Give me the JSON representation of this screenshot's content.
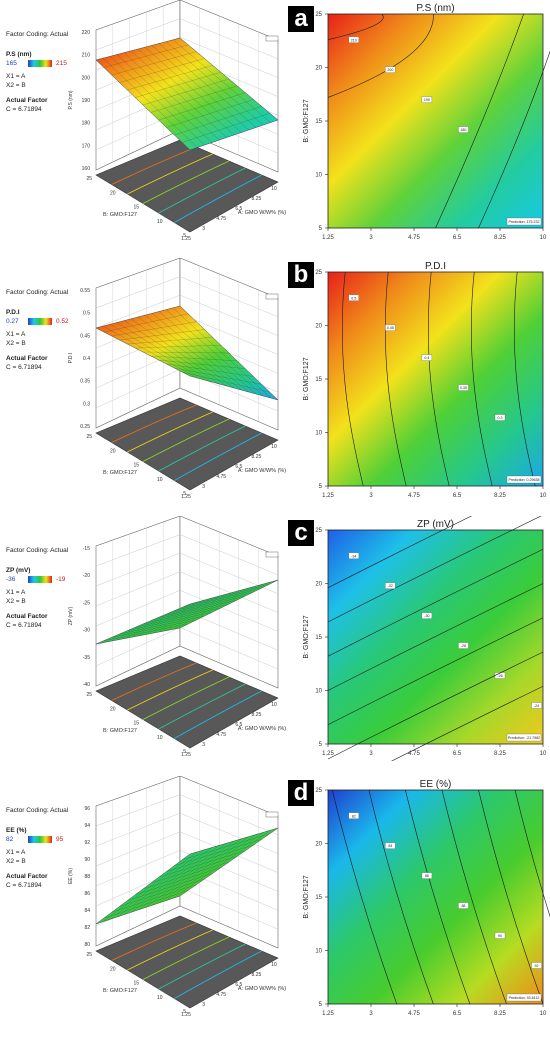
{
  "panels": [
    {
      "letter": "a",
      "title": "P.S (nm)",
      "factor_coding": "Factor Coding: Actual",
      "response": "P.S (nm)",
      "range_min": "165",
      "range_max": "215",
      "x1": "X1 = A",
      "x2": "X2 = B",
      "actual_factor": "Actual Factor",
      "c_value": "C = 6.71894",
      "z_ticks": [
        "220",
        "210",
        "200",
        "190",
        "180",
        "170",
        "160"
      ],
      "z_label": "P.S (nm)",
      "prediction": "Prediction: 175.232",
      "contour_labels": [
        "210",
        "200",
        "190",
        "180"
      ],
      "gradient": "ps"
    },
    {
      "letter": "b",
      "title": "P.D.I",
      "factor_coding": "Factor Coding: Actual",
      "response": "P.D.I",
      "range_min": "0.27",
      "range_max": "0.52",
      "x1": "X1 = A",
      "x2": "X2 = B",
      "actual_factor": "Actual Factor",
      "c_value": "C = 6.71894",
      "z_ticks": [
        "0.55",
        "0.5",
        "0.45",
        "0.4",
        "0.35",
        "0.3",
        "0.25"
      ],
      "z_label": "P.D.I",
      "prediction": "Prediction: 0.29638",
      "contour_labels": [
        "0.5",
        "0.45",
        "0.4",
        "0.35",
        "0.3"
      ],
      "gradient": "pdi"
    },
    {
      "letter": "c",
      "title": "ZP (mV)",
      "factor_coding": "Factor Coding: Actual",
      "response": "ZP (mV)",
      "range_min": "-36",
      "range_max": "-19",
      "x1": "X1 = A",
      "x2": "X2 = B",
      "actual_factor": "Actual Factor",
      "c_value": "C = 6.71894",
      "z_ticks": [
        "-15",
        "-20",
        "-25",
        "-30",
        "-35",
        "-40"
      ],
      "z_label": "ZP (mV)",
      "prediction": "Prediction: -21.7982",
      "contour_labels": [
        "-34",
        "-32",
        "-30",
        "-28",
        "-26",
        "-24",
        "-22"
      ],
      "gradient": "zp"
    },
    {
      "letter": "d",
      "title": "EE (%)",
      "factor_coding": "Factor Coding: Actual",
      "response": "EE (%)",
      "range_min": "82",
      "range_max": "95",
      "x1": "X1 = A",
      "x2": "X2 = B",
      "actual_factor": "Actual Factor",
      "c_value": "C = 6.71894",
      "z_ticks": [
        "96",
        "94",
        "92",
        "90",
        "88",
        "86",
        "84",
        "82",
        "80"
      ],
      "z_label": "EE (%)",
      "prediction": "Prediction: 93.8112",
      "contour_labels": [
        "82",
        "84",
        "86",
        "88",
        "90",
        "92"
      ],
      "gradient": "ee"
    }
  ],
  "axes": {
    "x_label": "A: GMO W/W% (%)",
    "y_label": "B: GMO:F127",
    "x_ticks": [
      "1.25",
      "3",
      "4.75",
      "6.5",
      "8.25",
      "10"
    ],
    "y_ticks": [
      "5",
      "10",
      "15",
      "20",
      "25"
    ],
    "floor_x_ticks": [
      "1.25",
      "3",
      "4.75",
      "6.5",
      "8.25",
      "10"
    ],
    "floor_y_ticks": [
      "5",
      "10",
      "15",
      "20",
      "25"
    ]
  },
  "colors": {
    "high": "#e8201a",
    "low": "#1f3fd0",
    "mid": "#2cc83a",
    "floor": "#585858"
  },
  "chart_data": [
    {
      "type": "surface+contour",
      "title": "P.S (nm)",
      "xlabel": "A: GMO W/W% (%)",
      "ylabel": "B: GMO:F127",
      "zlabel": "P.S (nm)",
      "xlim": [
        1.25,
        10
      ],
      "ylim": [
        5,
        25
      ],
      "zlim": [
        160,
        220
      ],
      "contour_levels": [
        210,
        200,
        190,
        180
      ],
      "color_range": [
        165,
        215
      ],
      "surface_corners": {
        "x1.25_y25": 214,
        "x10_y25": 195,
        "x1.25_y5": 193,
        "x10_y5": 168
      },
      "prediction": 175.232
    },
    {
      "type": "surface+contour",
      "title": "P.D.I",
      "xlabel": "A: GMO W/W% (%)",
      "ylabel": "B: GMO:F127",
      "zlabel": "P.D.I",
      "xlim": [
        1.25,
        10
      ],
      "ylim": [
        5,
        25
      ],
      "zlim": [
        0.25,
        0.55
      ],
      "contour_levels": [
        0.5,
        0.45,
        0.4,
        0.35,
        0.3
      ],
      "color_range": [
        0.27,
        0.52
      ],
      "surface_corners": {
        "x1.25_y25": 0.52,
        "x10_y25": 0.33,
        "x1.25_y5": 0.41,
        "x10_y5": 0.28
      },
      "prediction": 0.29638
    },
    {
      "type": "surface+contour",
      "title": "ZP (mV)",
      "xlabel": "A: GMO W/W% (%)",
      "ylabel": "B: GMO:F127",
      "zlabel": "ZP (mV)",
      "xlim": [
        1.25,
        10
      ],
      "ylim": [
        5,
        25
      ],
      "zlim": [
        -40,
        -15
      ],
      "contour_levels": [
        -34,
        -32,
        -30,
        -28,
        -26,
        -24,
        -22
      ],
      "color_range": [
        -36,
        -19
      ],
      "surface_corners": {
        "x1.25_y25": -36,
        "x10_y25": -29,
        "x1.25_y5": -27,
        "x10_y5": -19
      },
      "prediction": -21.7982
    },
    {
      "type": "surface+contour",
      "title": "EE (%)",
      "xlabel": "A: GMO W/W% (%)",
      "ylabel": "B: GMO:F127",
      "zlabel": "EE (%)",
      "xlim": [
        1.25,
        10
      ],
      "ylim": [
        5,
        25
      ],
      "zlim": [
        80,
        96
      ],
      "contour_levels": [
        82,
        84,
        86,
        88,
        90,
        92
      ],
      "color_range": [
        82,
        95
      ],
      "surface_corners": {
        "x1.25_y25": 82,
        "x10_y25": 89,
        "x1.25_y5": 87,
        "x10_y5": 95
      },
      "prediction": 93.8112
    }
  ]
}
